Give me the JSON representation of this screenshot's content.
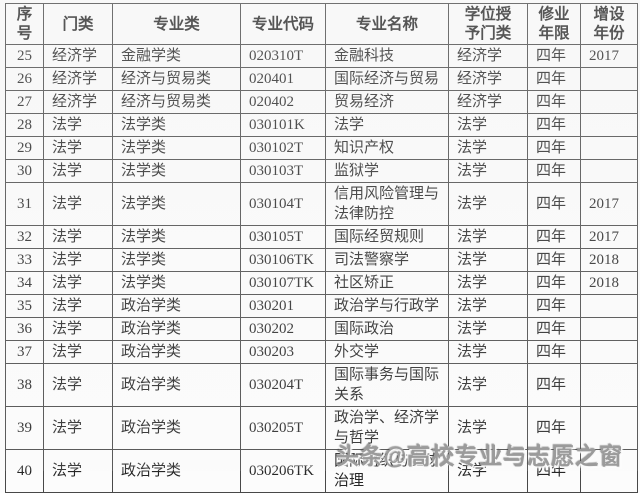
{
  "watermark": "头条@高校专业与志愿之窗",
  "colors": {
    "table_border": "#484848",
    "text": "#262626",
    "background": "#fcfcfc",
    "watermark_gray": "#9b9b9b"
  },
  "table": {
    "column_keys": [
      "no",
      "category",
      "major_class",
      "code",
      "name",
      "degree",
      "duration",
      "year"
    ],
    "headers": [
      "序\n号",
      "门类",
      "专业类",
      "专业代码",
      "专业名称",
      "学位授\n予门类",
      "修业\n年限",
      "增设\n年份"
    ],
    "rows": [
      {
        "no": "25",
        "category": "经济学",
        "major_class": "金融学类",
        "code": "020310T",
        "name": "金融科技",
        "degree": "经济学",
        "duration": "四年",
        "year": "2017"
      },
      {
        "no": "26",
        "category": "经济学",
        "major_class": "经济与贸易类",
        "code": "020401",
        "name": "国际经济与贸易",
        "degree": "经济学",
        "duration": "四年",
        "year": ""
      },
      {
        "no": "27",
        "category": "经济学",
        "major_class": "经济与贸易类",
        "code": "020402",
        "name": "贸易经济",
        "degree": "经济学",
        "duration": "四年",
        "year": ""
      },
      {
        "no": "28",
        "category": "法学",
        "major_class": "法学类",
        "code": "030101K",
        "name": "法学",
        "degree": "法学",
        "duration": "四年",
        "year": ""
      },
      {
        "no": "29",
        "category": "法学",
        "major_class": "法学类",
        "code": "030102T",
        "name": "知识产权",
        "degree": "法学",
        "duration": "四年",
        "year": ""
      },
      {
        "no": "30",
        "category": "法学",
        "major_class": "法学类",
        "code": "030103T",
        "name": "监狱学",
        "degree": "法学",
        "duration": "四年",
        "year": ""
      },
      {
        "no": "31",
        "category": "法学",
        "major_class": "法学类",
        "code": "030104T",
        "name": "信用风险管理与\n法律防控",
        "degree": "法学",
        "duration": "四年",
        "year": "2017"
      },
      {
        "no": "32",
        "category": "法学",
        "major_class": "法学类",
        "code": "030105T",
        "name": "国际经贸规则",
        "degree": "法学",
        "duration": "四年",
        "year": "2017"
      },
      {
        "no": "33",
        "category": "法学",
        "major_class": "法学类",
        "code": "030106TK",
        "name": "司法警察学",
        "degree": "法学",
        "duration": "四年",
        "year": "2018"
      },
      {
        "no": "34",
        "category": "法学",
        "major_class": "法学类",
        "code": "030107TK",
        "name": "社区矫正",
        "degree": "法学",
        "duration": "四年",
        "year": "2018"
      },
      {
        "no": "35",
        "category": "法学",
        "major_class": "政治学类",
        "code": "030201",
        "name": "政治学与行政学",
        "degree": "法学",
        "duration": "四年",
        "year": ""
      },
      {
        "no": "36",
        "category": "法学",
        "major_class": "政治学类",
        "code": "030202",
        "name": "国际政治",
        "degree": "法学",
        "duration": "四年",
        "year": ""
      },
      {
        "no": "37",
        "category": "法学",
        "major_class": "政治学类",
        "code": "030203",
        "name": "外交学",
        "degree": "法学",
        "duration": "四年",
        "year": ""
      },
      {
        "no": "38",
        "category": "法学",
        "major_class": "政治学类",
        "code": "030204T",
        "name": "国际事务与国际\n关系",
        "degree": "法学",
        "duration": "四年",
        "year": ""
      },
      {
        "no": "39",
        "category": "法学",
        "major_class": "政治学类",
        "code": "030205T",
        "name": "政治学、经济学\n与哲学",
        "degree": "法学",
        "duration": "四年",
        "year": ""
      },
      {
        "no": "40",
        "category": "法学",
        "major_class": "政治学类",
        "code": "030206TK",
        "name": "国际组织与全球\n治理",
        "degree": "法学",
        "duration": "四年",
        "year": ""
      }
    ]
  }
}
